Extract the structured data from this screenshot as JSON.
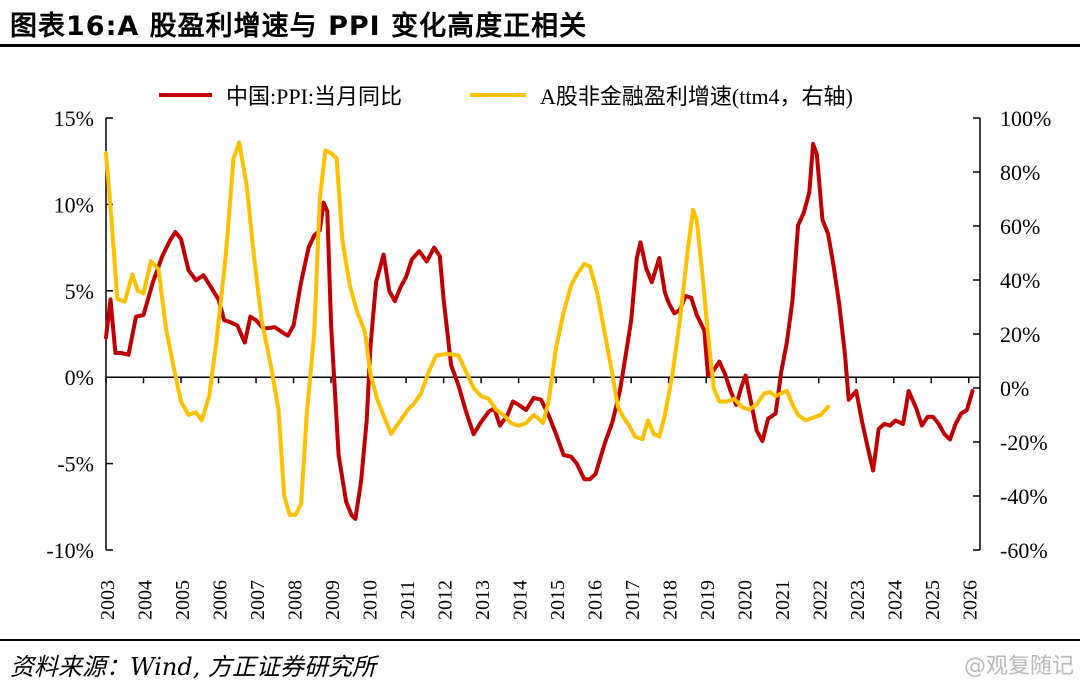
{
  "header": {
    "title": "图表16:A 股盈利增速与 PPI 变化高度正相关"
  },
  "footer": {
    "source": "资料来源：Wind, 方正证券研究所",
    "watermark": "@观复随记"
  },
  "chart_data": {
    "type": "line",
    "title": "图表16:A 股盈利增速与 PPI 变化高度正相关",
    "x_tick_labels": [
      "2003",
      "2004",
      "2005",
      "2006",
      "2007",
      "2008",
      "2009",
      "2010",
      "2011",
      "2012",
      "2013",
      "2014",
      "2015",
      "2016",
      "2017",
      "2018",
      "2019",
      "2020",
      "2021",
      "2022",
      "2023",
      "2024",
      "2025",
      "2026"
    ],
    "xlim": [
      2003,
      2026.3
    ],
    "y_left": {
      "ylim": [
        -10,
        15
      ],
      "ticks": [
        -10,
        -5,
        0,
        5,
        10,
        15
      ],
      "tick_labels": [
        "-10%",
        "-5%",
        "0%",
        "5%",
        "10%",
        "15%"
      ]
    },
    "y_right": {
      "ylim": [
        -60,
        100
      ],
      "ticks": [
        -60,
        -40,
        -20,
        0,
        20,
        40,
        60,
        80,
        100
      ],
      "tick_labels": [
        "-60%",
        "-40%",
        "-20%",
        "0%",
        "20%",
        "40%",
        "60%",
        "80%",
        "100%"
      ]
    },
    "series": [
      {
        "name": "中国:PPI:当月同比",
        "color": "#C00000",
        "axis": "left",
        "points": [
          [
            2003.0,
            2.3
          ],
          [
            2003.12,
            4.5
          ],
          [
            2003.25,
            1.4
          ],
          [
            2003.4,
            1.4
          ],
          [
            2003.6,
            1.3
          ],
          [
            2003.8,
            3.5
          ],
          [
            2004.0,
            3.6
          ],
          [
            2004.25,
            5.5
          ],
          [
            2004.5,
            7.0
          ],
          [
            2004.7,
            7.9
          ],
          [
            2004.85,
            8.4
          ],
          [
            2005.0,
            8.0
          ],
          [
            2005.2,
            6.2
          ],
          [
            2005.4,
            5.6
          ],
          [
            2005.6,
            5.9
          ],
          [
            2005.8,
            5.2
          ],
          [
            2006.0,
            4.5
          ],
          [
            2006.15,
            3.3
          ],
          [
            2006.3,
            3.2
          ],
          [
            2006.5,
            3.0
          ],
          [
            2006.7,
            2.0
          ],
          [
            2006.85,
            3.5
          ],
          [
            2007.0,
            3.3
          ],
          [
            2007.2,
            2.8
          ],
          [
            2007.5,
            2.9
          ],
          [
            2007.7,
            2.6
          ],
          [
            2007.85,
            2.4
          ],
          [
            2008.0,
            3.0
          ],
          [
            2008.2,
            5.5
          ],
          [
            2008.4,
            7.5
          ],
          [
            2008.55,
            8.2
          ],
          [
            2008.7,
            8.5
          ],
          [
            2008.8,
            10.1
          ],
          [
            2008.9,
            9.6
          ],
          [
            2009.0,
            3.0
          ],
          [
            2009.2,
            -4.5
          ],
          [
            2009.4,
            -7.2
          ],
          [
            2009.55,
            -8.0
          ],
          [
            2009.65,
            -8.2
          ],
          [
            2009.8,
            -6.0
          ],
          [
            2009.95,
            -2.5
          ],
          [
            2010.05,
            1.8
          ],
          [
            2010.2,
            5.5
          ],
          [
            2010.4,
            7.1
          ],
          [
            2010.55,
            5.0
          ],
          [
            2010.7,
            4.4
          ],
          [
            2010.85,
            5.2
          ],
          [
            2011.0,
            5.8
          ],
          [
            2011.15,
            6.8
          ],
          [
            2011.35,
            7.3
          ],
          [
            2011.55,
            6.7
          ],
          [
            2011.75,
            7.5
          ],
          [
            2011.9,
            7.0
          ],
          [
            2012.0,
            4.5
          ],
          [
            2012.2,
            0.7
          ],
          [
            2012.4,
            -0.5
          ],
          [
            2012.6,
            -2.0
          ],
          [
            2012.8,
            -3.3
          ],
          [
            2013.0,
            -2.6
          ],
          [
            2013.2,
            -2.0
          ],
          [
            2013.35,
            -1.8
          ],
          [
            2013.5,
            -2.8
          ],
          [
            2013.7,
            -2.2
          ],
          [
            2013.85,
            -1.4
          ],
          [
            2014.0,
            -1.6
          ],
          [
            2014.2,
            -1.9
          ],
          [
            2014.4,
            -1.2
          ],
          [
            2014.6,
            -1.3
          ],
          [
            2014.8,
            -2.2
          ],
          [
            2015.0,
            -3.3
          ],
          [
            2015.2,
            -4.5
          ],
          [
            2015.4,
            -4.6
          ],
          [
            2015.55,
            -5.0
          ],
          [
            2015.75,
            -5.9
          ],
          [
            2015.9,
            -5.9
          ],
          [
            2016.05,
            -5.6
          ],
          [
            2016.3,
            -3.8
          ],
          [
            2016.5,
            -2.6
          ],
          [
            2016.7,
            -0.8
          ],
          [
            2016.85,
            1.2
          ],
          [
            2017.0,
            3.3
          ],
          [
            2017.15,
            6.9
          ],
          [
            2017.25,
            7.8
          ],
          [
            2017.4,
            6.3
          ],
          [
            2017.55,
            5.5
          ],
          [
            2017.75,
            6.9
          ],
          [
            2017.9,
            4.9
          ],
          [
            2018.0,
            4.3
          ],
          [
            2018.15,
            3.7
          ],
          [
            2018.3,
            3.9
          ],
          [
            2018.45,
            4.7
          ],
          [
            2018.6,
            4.6
          ],
          [
            2018.75,
            3.6
          ],
          [
            2018.95,
            2.7
          ],
          [
            2019.05,
            0.1
          ],
          [
            2019.2,
            0.4
          ],
          [
            2019.35,
            0.9
          ],
          [
            2019.5,
            0.2
          ],
          [
            2019.65,
            -0.8
          ],
          [
            2019.8,
            -1.6
          ],
          [
            2019.95,
            -0.5
          ],
          [
            2020.05,
            0.1
          ],
          [
            2020.2,
            -1.5
          ],
          [
            2020.35,
            -3.1
          ],
          [
            2020.5,
            -3.7
          ],
          [
            2020.65,
            -2.4
          ],
          [
            2020.85,
            -2.1
          ],
          [
            2021.0,
            0.3
          ],
          [
            2021.15,
            2.0
          ],
          [
            2021.3,
            4.4
          ],
          [
            2021.45,
            8.8
          ],
          [
            2021.6,
            9.5
          ],
          [
            2021.75,
            10.7
          ],
          [
            2021.85,
            13.5
          ],
          [
            2021.95,
            12.9
          ],
          [
            2022.1,
            9.1
          ],
          [
            2022.25,
            8.3
          ],
          [
            2022.4,
            6.4
          ],
          [
            2022.55,
            4.2
          ],
          [
            2022.7,
            1.3
          ],
          [
            2022.8,
            -1.3
          ],
          [
            2023.0,
            -0.8
          ],
          [
            2023.15,
            -2.5
          ],
          [
            2023.3,
            -4.0
          ],
          [
            2023.45,
            -5.4
          ],
          [
            2023.6,
            -3.0
          ],
          [
            2023.75,
            -2.7
          ],
          [
            2023.9,
            -2.8
          ],
          [
            2024.05,
            -2.5
          ],
          [
            2024.25,
            -2.7
          ],
          [
            2024.4,
            -0.8
          ],
          [
            2024.6,
            -1.8
          ],
          [
            2024.75,
            -2.8
          ],
          [
            2024.9,
            -2.3
          ],
          [
            2025.05,
            -2.3
          ],
          [
            2025.2,
            -2.7
          ],
          [
            2025.35,
            -3.3
          ],
          [
            2025.5,
            -3.6
          ],
          [
            2025.65,
            -2.7
          ],
          [
            2025.8,
            -2.1
          ],
          [
            2025.95,
            -1.9
          ],
          [
            2026.1,
            -0.8
          ]
        ]
      },
      {
        "name": "A股非金融盈利增速(ttm4，右轴)",
        "color": "#FFC000",
        "axis": "right",
        "points": [
          [
            2003.0,
            87
          ],
          [
            2003.15,
            62
          ],
          [
            2003.3,
            33
          ],
          [
            2003.5,
            32
          ],
          [
            2003.7,
            42
          ],
          [
            2003.85,
            36
          ],
          [
            2004.0,
            35
          ],
          [
            2004.2,
            47
          ],
          [
            2004.4,
            44
          ],
          [
            2004.6,
            22
          ],
          [
            2004.8,
            8
          ],
          [
            2005.0,
            -5
          ],
          [
            2005.2,
            -10
          ],
          [
            2005.4,
            -9
          ],
          [
            2005.55,
            -12
          ],
          [
            2005.75,
            -3
          ],
          [
            2005.95,
            18
          ],
          [
            2006.2,
            50
          ],
          [
            2006.4,
            85
          ],
          [
            2006.55,
            91
          ],
          [
            2006.75,
            75
          ],
          [
            2006.95,
            48
          ],
          [
            2007.15,
            25
          ],
          [
            2007.4,
            8
          ],
          [
            2007.6,
            -8
          ],
          [
            2007.75,
            -40
          ],
          [
            2007.9,
            -47
          ],
          [
            2008.05,
            -47
          ],
          [
            2008.2,
            -43
          ],
          [
            2008.35,
            -10
          ],
          [
            2008.55,
            20
          ],
          [
            2008.7,
            70
          ],
          [
            2008.85,
            88
          ],
          [
            2009.0,
            87
          ],
          [
            2009.15,
            85
          ],
          [
            2009.3,
            55
          ],
          [
            2009.5,
            38
          ],
          [
            2009.7,
            28
          ],
          [
            2009.9,
            21
          ],
          [
            2010.05,
            5
          ],
          [
            2010.25,
            -5
          ],
          [
            2010.45,
            -12
          ],
          [
            2010.6,
            -17
          ],
          [
            2010.85,
            -12
          ],
          [
            2011.05,
            -8
          ],
          [
            2011.2,
            -6
          ],
          [
            2011.4,
            -2
          ],
          [
            2011.6,
            6
          ],
          [
            2011.8,
            12
          ],
          [
            2012.0,
            12.5
          ],
          [
            2012.2,
            12.5
          ],
          [
            2012.4,
            12
          ],
          [
            2012.6,
            6
          ],
          [
            2012.8,
            0
          ],
          [
            2013.0,
            -3
          ],
          [
            2013.2,
            -4
          ],
          [
            2013.4,
            -8
          ],
          [
            2013.6,
            -10
          ],
          [
            2013.8,
            -13
          ],
          [
            2014.0,
            -14
          ],
          [
            2014.2,
            -13
          ],
          [
            2014.4,
            -10
          ],
          [
            2014.5,
            -11
          ],
          [
            2014.65,
            -13
          ],
          [
            2014.8,
            -5
          ],
          [
            2015.0,
            15
          ],
          [
            2015.2,
            28
          ],
          [
            2015.4,
            38
          ],
          [
            2015.55,
            42
          ],
          [
            2015.75,
            46
          ],
          [
            2015.9,
            45
          ],
          [
            2016.1,
            35
          ],
          [
            2016.3,
            20
          ],
          [
            2016.5,
            5
          ],
          [
            2016.65,
            -7
          ],
          [
            2016.8,
            -11
          ],
          [
            2016.95,
            -14
          ],
          [
            2017.1,
            -18
          ],
          [
            2017.3,
            -19
          ],
          [
            2017.45,
            -12
          ],
          [
            2017.6,
            -17
          ],
          [
            2017.75,
            -18
          ],
          [
            2017.9,
            -10
          ],
          [
            2018.1,
            5
          ],
          [
            2018.3,
            25
          ],
          [
            2018.5,
            50
          ],
          [
            2018.65,
            66
          ],
          [
            2018.75,
            62
          ],
          [
            2018.9,
            42
          ],
          [
            2019.05,
            20
          ],
          [
            2019.2,
            0
          ],
          [
            2019.35,
            -5
          ],
          [
            2019.55,
            -5
          ],
          [
            2019.75,
            -4
          ],
          [
            2019.95,
            -7
          ],
          [
            2020.15,
            -8
          ],
          [
            2020.35,
            -6
          ],
          [
            2020.55,
            -2
          ],
          [
            2020.7,
            -1.5
          ],
          [
            2020.85,
            -3
          ],
          [
            2021.0,
            -2
          ],
          [
            2021.15,
            -1
          ],
          [
            2021.3,
            -6
          ],
          [
            2021.45,
            -10
          ],
          [
            2021.65,
            -12
          ],
          [
            2021.85,
            -11
          ],
          [
            2022.05,
            -10
          ],
          [
            2022.25,
            -7
          ]
        ]
      }
    ],
    "legend": {
      "position": "top",
      "entries": [
        "中国:PPI:当月同比",
        "A股非金融盈利增速(ttm4，右轴)"
      ]
    }
  }
}
